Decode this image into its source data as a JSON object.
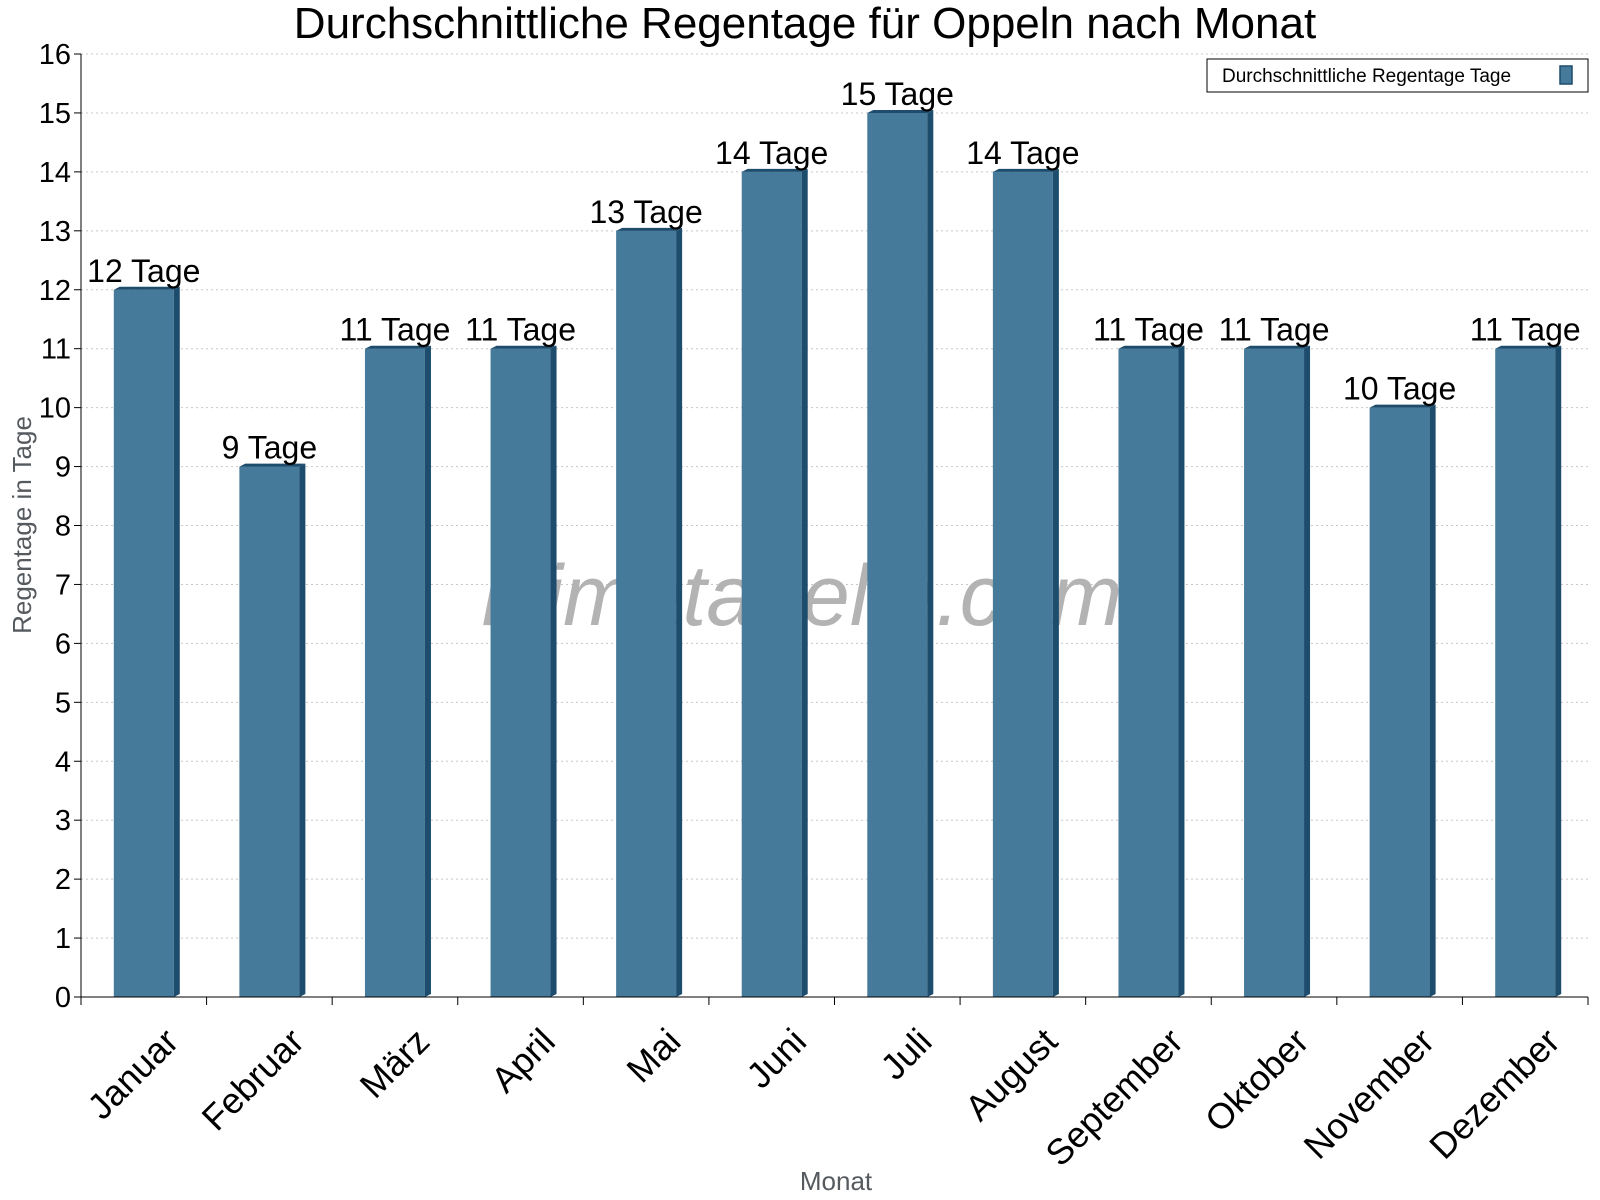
{
  "chart_data": {
    "type": "bar",
    "title": "Durchschnittliche Regentage für Oppeln nach Monat",
    "xlabel": "Monat",
    "ylabel": "Regentage in Tage",
    "ylim": [
      0,
      16
    ],
    "yticks": [
      "0",
      "1",
      "2",
      "3",
      "4",
      "5",
      "6",
      "7",
      "8",
      "9",
      "10",
      "11",
      "12",
      "13",
      "14",
      "15",
      "16"
    ],
    "categories": [
      "Januar",
      "Februar",
      "März",
      "April",
      "Mai",
      "Juni",
      "Juli",
      "August",
      "September",
      "Oktober",
      "November",
      "Dezember"
    ],
    "series": [
      {
        "name": "Durchschnittliche Regentage Tage",
        "values": [
          12,
          9,
          11,
          11,
          13,
          14,
          15,
          14,
          11,
          11,
          10,
          11
        ],
        "labels": [
          "12 Tage",
          "9 Tage",
          "11 Tage",
          "11 Tage",
          "13 Tage",
          "14 Tage",
          "15 Tage",
          "14 Tage",
          "11 Tage",
          "11 Tage",
          "10 Tage",
          "11 Tage"
        ],
        "color": "#467a9b",
        "shade_color": "#1d4c6d"
      }
    ],
    "grid": "horizontal-dotted",
    "legend_position": "top-right",
    "watermark": "klimatabelle.com"
  }
}
